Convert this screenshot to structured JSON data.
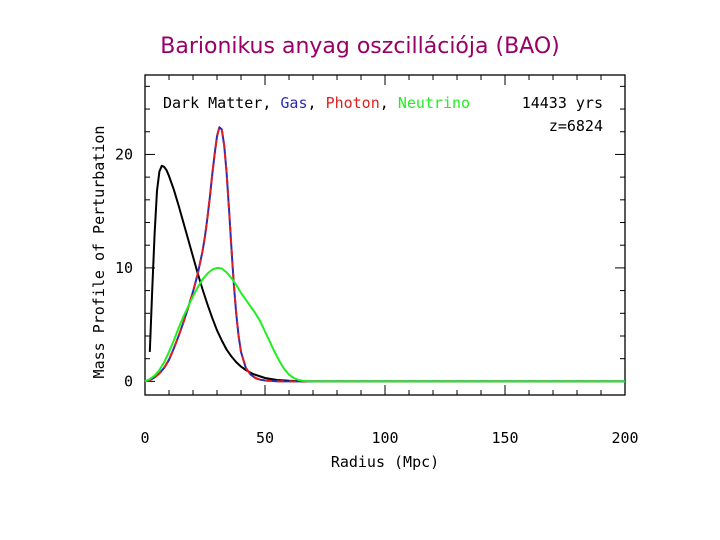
{
  "slide": {
    "title": "Barionikus anyag oszcillációja (BAO)"
  },
  "chart_data": {
    "type": "line",
    "xlabel": "Radius (Mpc)",
    "ylabel": "Mass Profile of Perturbation",
    "xlim": [
      0,
      200
    ],
    "ylim": [
      -1.2,
      27
    ],
    "x_ticks": [
      0,
      50,
      100,
      150,
      200
    ],
    "y_ticks": [
      0,
      10,
      20
    ],
    "grid": false,
    "legend_position": "top",
    "annotations": [
      "14433 yrs",
      "z=6824"
    ],
    "series": [
      {
        "name": "Dark Matter",
        "color": "#000000",
        "dash": false,
        "x": [
          2,
          3,
          4,
          5,
          6,
          7,
          8,
          9,
          10,
          12,
          14,
          16,
          18,
          20,
          22,
          24,
          26,
          28,
          30,
          32,
          34,
          36,
          38,
          40,
          42,
          45,
          50,
          55,
          60,
          65,
          70,
          80,
          200
        ],
        "y": [
          2.6,
          8.0,
          13.0,
          16.8,
          18.5,
          19.0,
          18.9,
          18.6,
          18.1,
          16.9,
          15.5,
          14.0,
          12.5,
          11.0,
          9.5,
          8.1,
          6.8,
          5.6,
          4.5,
          3.6,
          2.8,
          2.2,
          1.7,
          1.3,
          1.0,
          0.65,
          0.3,
          0.12,
          0.05,
          0.02,
          0.0,
          0.0,
          0.0
        ]
      },
      {
        "name": "Gas",
        "color": "#2b2bb8",
        "dash": false,
        "x": [
          0,
          2,
          4,
          6,
          8,
          10,
          12,
          14,
          16,
          18,
          20,
          22,
          24,
          25,
          26,
          27,
          28,
          29,
          30,
          31,
          32,
          33,
          34,
          35,
          36,
          37,
          38,
          39,
          40,
          42,
          44,
          46,
          48,
          50,
          55,
          60,
          70,
          200
        ],
        "y": [
          0,
          0.1,
          0.35,
          0.7,
          1.2,
          1.9,
          2.9,
          4.0,
          5.2,
          6.5,
          7.9,
          9.5,
          11.5,
          12.8,
          14.4,
          16.2,
          18.2,
          20.0,
          21.6,
          22.4,
          22.2,
          20.8,
          18.4,
          15.2,
          11.8,
          8.6,
          6.0,
          4.0,
          2.6,
          1.2,
          0.6,
          0.3,
          0.15,
          0.08,
          0.02,
          0.0,
          0.0,
          0.0
        ]
      },
      {
        "name": "Photon",
        "color": "#e01e1e",
        "dash": true,
        "x": [
          0,
          2,
          4,
          6,
          8,
          10,
          12,
          14,
          16,
          18,
          20,
          22,
          24,
          25,
          26,
          27,
          28,
          29,
          30,
          31,
          32,
          33,
          34,
          35,
          36,
          37,
          38,
          39,
          40,
          42,
          44,
          46,
          48,
          50,
          55,
          60,
          70,
          200
        ],
        "y": [
          0,
          0.1,
          0.35,
          0.7,
          1.2,
          1.9,
          2.9,
          4.0,
          5.2,
          6.5,
          7.9,
          9.5,
          11.5,
          12.8,
          14.4,
          16.2,
          18.2,
          20.0,
          21.6,
          22.4,
          22.2,
          20.8,
          18.4,
          15.2,
          11.8,
          8.6,
          6.0,
          4.0,
          2.6,
          1.2,
          0.6,
          0.3,
          0.15,
          0.08,
          0.02,
          0.0,
          0.0,
          0.0
        ]
      },
      {
        "name": "Neutrino",
        "color": "#22ee22",
        "dash": false,
        "x": [
          0,
          2,
          4,
          6,
          8,
          10,
          12,
          14,
          16,
          18,
          20,
          22,
          24,
          26,
          28,
          30,
          32,
          34,
          36,
          38,
          40,
          42,
          44,
          46,
          48,
          50,
          52,
          54,
          56,
          58,
          60,
          62,
          64,
          66,
          68,
          70,
          80,
          200
        ],
        "y": [
          0,
          0.2,
          0.5,
          1.0,
          1.7,
          2.6,
          3.6,
          4.7,
          5.7,
          6.6,
          7.5,
          8.3,
          9.0,
          9.5,
          9.85,
          10.0,
          9.95,
          9.6,
          9.1,
          8.5,
          7.8,
          7.2,
          6.6,
          6.0,
          5.3,
          4.4,
          3.5,
          2.6,
          1.8,
          1.1,
          0.6,
          0.3,
          0.12,
          0.05,
          0.02,
          0.0,
          0.0,
          0.0
        ]
      }
    ]
  }
}
